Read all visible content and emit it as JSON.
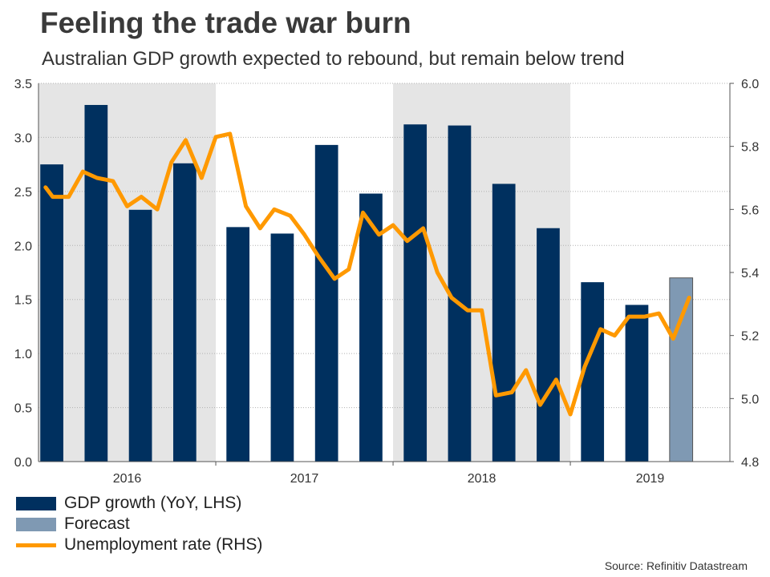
{
  "header": {
    "title": "Feeling the trade war burn",
    "subtitle": "Australian GDP growth expected to rebound, but remain below trend"
  },
  "source": "Source: Refinitiv Datastream",
  "colors": {
    "gdp": "#00305f",
    "forecast": "#7f99b3",
    "unemployment": "#ff9900",
    "shade": "#e5e5e5"
  },
  "legend": [
    {
      "label": "GDP growth (YoY, LHS)",
      "color": "#00305f",
      "kind": "bar"
    },
    {
      "label": "Forecast",
      "color": "#7f99b3",
      "kind": "bar"
    },
    {
      "label": "Unemployment rate (RHS)",
      "color": "#ff9900",
      "kind": "line"
    }
  ],
  "chart_data": {
    "type": "bar",
    "title": "Feeling the trade war burn",
    "x_start": 2016.0,
    "x_end": 2019.9,
    "years": [
      "2016",
      "2017",
      "2018",
      "2019"
    ],
    "year_ranges": [
      [
        2016.0,
        2017.0
      ],
      [
        2017.0,
        2018.0
      ],
      [
        2018.0,
        2019.0
      ],
      [
        2019.0,
        2019.9
      ]
    ],
    "shaded_years": [
      "2016",
      "2018"
    ],
    "left_axis": {
      "label": "GDP growth (YoY, LHS)",
      "ylim": [
        0,
        3.5
      ],
      "ticks": [
        "0.0",
        "0.5",
        "1.0",
        "1.5",
        "2.0",
        "2.5",
        "3.0",
        "3.5"
      ]
    },
    "right_axis": {
      "label": "Unemployment rate (RHS)",
      "ylim": [
        4.8,
        6.0
      ],
      "ticks": [
        "4.8",
        "5.0",
        "5.2",
        "5.4",
        "5.6",
        "5.8",
        "6.0"
      ]
    },
    "gdp_bars": [
      {
        "period": "2016 Q1",
        "t": 2016.075,
        "value": 2.75,
        "forecast": false
      },
      {
        "period": "2016 Q2",
        "t": 2016.325,
        "value": 3.3,
        "forecast": false
      },
      {
        "period": "2016 Q3",
        "t": 2016.575,
        "value": 2.33,
        "forecast": false
      },
      {
        "period": "2016 Q4",
        "t": 2016.825,
        "value": 2.76,
        "forecast": false
      },
      {
        "period": "2017 Q1",
        "t": 2017.125,
        "value": 2.17,
        "forecast": false
      },
      {
        "period": "2017 Q2",
        "t": 2017.375,
        "value": 2.11,
        "forecast": false
      },
      {
        "period": "2017 Q3",
        "t": 2017.625,
        "value": 2.93,
        "forecast": false
      },
      {
        "period": "2017 Q4",
        "t": 2017.875,
        "value": 2.48,
        "forecast": false
      },
      {
        "period": "2018 Q1",
        "t": 2018.125,
        "value": 3.12,
        "forecast": false
      },
      {
        "period": "2018 Q2",
        "t": 2018.375,
        "value": 3.11,
        "forecast": false
      },
      {
        "period": "2018 Q3",
        "t": 2018.625,
        "value": 2.57,
        "forecast": false
      },
      {
        "period": "2018 Q4",
        "t": 2018.875,
        "value": 2.16,
        "forecast": false
      },
      {
        "period": "2019 Q1",
        "t": 2019.125,
        "value": 1.66,
        "forecast": false
      },
      {
        "period": "2019 Q2",
        "t": 2019.375,
        "value": 1.45,
        "forecast": false
      },
      {
        "period": "2019 Q3",
        "t": 2019.625,
        "value": 1.7,
        "forecast": true
      }
    ],
    "unemployment": [
      {
        "t": 2016.04,
        "value": 5.67
      },
      {
        "t": 2016.08,
        "value": 5.64
      },
      {
        "t": 2016.17,
        "value": 5.64
      },
      {
        "t": 2016.25,
        "value": 5.72
      },
      {
        "t": 2016.33,
        "value": 5.7
      },
      {
        "t": 2016.42,
        "value": 5.69
      },
      {
        "t": 2016.5,
        "value": 5.61
      },
      {
        "t": 2016.58,
        "value": 5.64
      },
      {
        "t": 2016.67,
        "value": 5.6
      },
      {
        "t": 2016.75,
        "value": 5.75
      },
      {
        "t": 2016.83,
        "value": 5.82
      },
      {
        "t": 2016.92,
        "value": 5.7
      },
      {
        "t": 2017.0,
        "value": 5.83
      },
      {
        "t": 2017.08,
        "value": 5.84
      },
      {
        "t": 2017.17,
        "value": 5.61
      },
      {
        "t": 2017.25,
        "value": 5.54
      },
      {
        "t": 2017.33,
        "value": 5.6
      },
      {
        "t": 2017.42,
        "value": 5.58
      },
      {
        "t": 2017.5,
        "value": 5.52
      },
      {
        "t": 2017.58,
        "value": 5.45
      },
      {
        "t": 2017.67,
        "value": 5.38
      },
      {
        "t": 2017.75,
        "value": 5.41
      },
      {
        "t": 2017.83,
        "value": 5.59
      },
      {
        "t": 2017.92,
        "value": 5.52
      },
      {
        "t": 2018.0,
        "value": 5.55
      },
      {
        "t": 2018.08,
        "value": 5.5
      },
      {
        "t": 2018.17,
        "value": 5.54
      },
      {
        "t": 2018.25,
        "value": 5.4
      },
      {
        "t": 2018.33,
        "value": 5.32
      },
      {
        "t": 2018.42,
        "value": 5.28
      },
      {
        "t": 2018.5,
        "value": 5.28
      },
      {
        "t": 2018.58,
        "value": 5.01
      },
      {
        "t": 2018.67,
        "value": 5.02
      },
      {
        "t": 2018.75,
        "value": 5.09
      },
      {
        "t": 2018.83,
        "value": 4.98
      },
      {
        "t": 2018.92,
        "value": 5.06
      },
      {
        "t": 2019.0,
        "value": 4.95
      },
      {
        "t": 2019.08,
        "value": 5.1
      },
      {
        "t": 2019.17,
        "value": 5.22
      },
      {
        "t": 2019.25,
        "value": 5.2
      },
      {
        "t": 2019.33,
        "value": 5.26
      },
      {
        "t": 2019.42,
        "value": 5.26
      },
      {
        "t": 2019.5,
        "value": 5.27
      },
      {
        "t": 2019.58,
        "value": 5.19
      },
      {
        "t": 2019.67,
        "value": 5.32
      }
    ]
  }
}
